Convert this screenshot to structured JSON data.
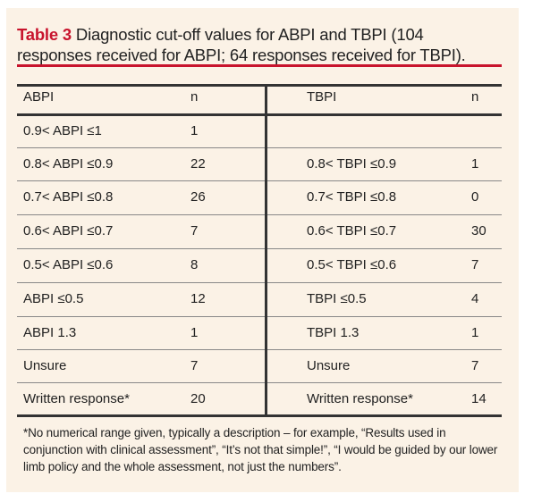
{
  "caption": {
    "label": "Table 3",
    "line1_rest": " Diagnostic cut-off values for ABPI and TBPI (104",
    "line2": "responses received for ABPI; 64 responses received for TBPI)."
  },
  "headers": {
    "abpi": "ABPI",
    "abpi_n": "n",
    "tbpi": "TBPI",
    "tbpi_n": "n"
  },
  "rows": [
    {
      "abpi": "0.9< ABPI ≤1",
      "abpi_n": "1",
      "tbpi": "",
      "tbpi_n": ""
    },
    {
      "abpi": "0.8< ABPI ≤0.9",
      "abpi_n": "22",
      "tbpi": "0.8< TBPI ≤0.9",
      "tbpi_n": "1"
    },
    {
      "abpi": "0.7< ABPI ≤0.8",
      "abpi_n": "26",
      "tbpi": "0.7< TBPI ≤0.8",
      "tbpi_n": "0"
    },
    {
      "abpi": "0.6< ABPI ≤0.7",
      "abpi_n": "7",
      "tbpi": "0.6< TBPI ≤0.7",
      "tbpi_n": "30"
    },
    {
      "abpi": "0.5< ABPI ≤0.6",
      "abpi_n": "8",
      "tbpi": "0.5< TBPI ≤0.6",
      "tbpi_n": "7"
    },
    {
      "abpi": "ABPI ≤0.5",
      "abpi_n": "12",
      "tbpi": "TBPI ≤0.5",
      "tbpi_n": "4"
    },
    {
      "abpi": "ABPI 1.3",
      "abpi_n": "1",
      "tbpi": "TBPI 1.3",
      "tbpi_n": "1"
    },
    {
      "abpi": "Unsure",
      "abpi_n": "7",
      "tbpi": "Unsure",
      "tbpi_n": "7"
    },
    {
      "abpi": "Written response*",
      "abpi_n": "20",
      "tbpi": "Written response*",
      "tbpi_n": "14"
    }
  ],
  "footnote": "*No numerical range given, typically a description – for example, “Results used in conjunction with clinical assessment”, “It’s not that simple!”, “I would be guided by our lower limb policy and the whole assessment, not just the numbers”.",
  "colors": {
    "accent": "#c8142d",
    "panel": "#fbf2e6"
  }
}
